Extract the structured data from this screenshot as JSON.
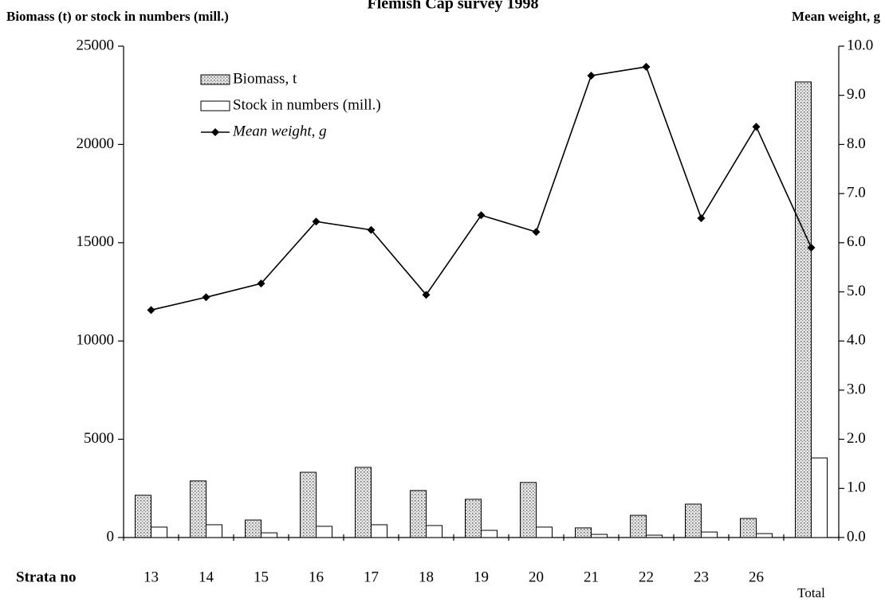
{
  "chart_data": {
    "type": "bar",
    "title": "Flemish Cap survey 1998",
    "y_label": "Biomass (t) or stock in numbers (mill.)",
    "y2_label": "Mean weight, g",
    "x_label": "Strata no",
    "categories": [
      "13",
      "14",
      "15",
      "16",
      "17",
      "18",
      "19",
      "20",
      "21",
      "22",
      "23",
      "26",
      "Total"
    ],
    "series": [
      {
        "name": "Biomass, t",
        "type": "bar",
        "color": "#b4b4b4",
        "values": [
          2150,
          2880,
          890,
          3320,
          3570,
          2390,
          1945,
          2800,
          490,
          1130,
          1700,
          970,
          23180
        ]
      },
      {
        "name": "Stock in numbers (mill.)",
        "type": "bar",
        "color": "#ffffff",
        "values": [
          530,
          650,
          240,
          570,
          650,
          610,
          365,
          530,
          160,
          120,
          280,
          200,
          4050
        ]
      },
      {
        "name": "Mean weight, g",
        "type": "line",
        "axis": "y2",
        "color": "#000000",
        "values": [
          4.63,
          4.89,
          5.17,
          6.43,
          6.26,
          4.94,
          6.56,
          6.22,
          9.4,
          9.58,
          6.5,
          8.36,
          5.9
        ]
      }
    ],
    "ylim": [
      0,
      25000
    ],
    "yticks": [
      0,
      5000,
      10000,
      15000,
      20000,
      25000
    ],
    "y2lim": [
      0,
      10
    ],
    "y2ticks": [
      {
        "value": 0,
        "label": "0.0"
      },
      {
        "value": 1,
        "label": "1.0"
      },
      {
        "value": 2,
        "label": "2.0"
      },
      {
        "value": 3,
        "label": "3.0"
      },
      {
        "value": 4,
        "label": "4.0"
      },
      {
        "value": 5,
        "label": "5.0"
      },
      {
        "value": 6,
        "label": "6.0"
      },
      {
        "value": 7,
        "label": "7.0"
      },
      {
        "value": 8,
        "label": "8.0"
      },
      {
        "value": 9,
        "label": "9.0"
      },
      {
        "value": 10,
        "label": "10.0"
      }
    ],
    "grid": false,
    "legend": "top-left"
  }
}
